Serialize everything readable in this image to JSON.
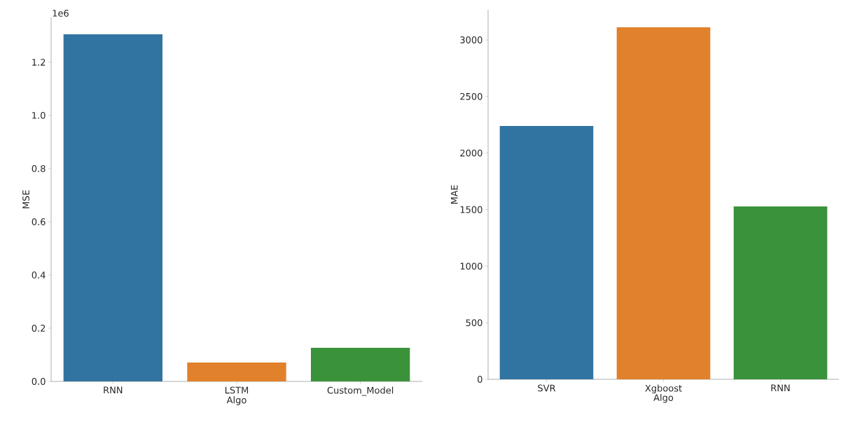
{
  "chart_data": [
    {
      "type": "bar",
      "categories": [
        "RNN",
        "LSTM",
        "Custom_Model"
      ],
      "values": [
        1.305,
        0.071,
        0.126
      ],
      "colors": [
        "#3274a1",
        "#e1812c",
        "#3a923a"
      ],
      "xlabel": "Algo",
      "ylabel": "MSE",
      "ylim": [
        0,
        1.368
      ],
      "yticks": [
        {
          "value": 0,
          "label": "0.0"
        },
        0.2,
        0.4,
        0.6,
        0.8,
        {
          "value": 1,
          "label": "1.0"
        },
        1.2
      ],
      "annotations": [
        "1e6"
      ]
    },
    {
      "type": "bar",
      "categories": [
        "SVR",
        "Xgboost",
        "RNN"
      ],
      "values": [
        2239,
        3111,
        1528
      ],
      "colors": [
        "#3274a1",
        "#e1812c",
        "#3a923a"
      ],
      "xlabel": "Algo",
      "ylabel": "MAE",
      "ylim": [
        0,
        3266
      ],
      "yticks": [
        0,
        500,
        1000,
        1500,
        2000,
        2500,
        3000
      ]
    }
  ]
}
